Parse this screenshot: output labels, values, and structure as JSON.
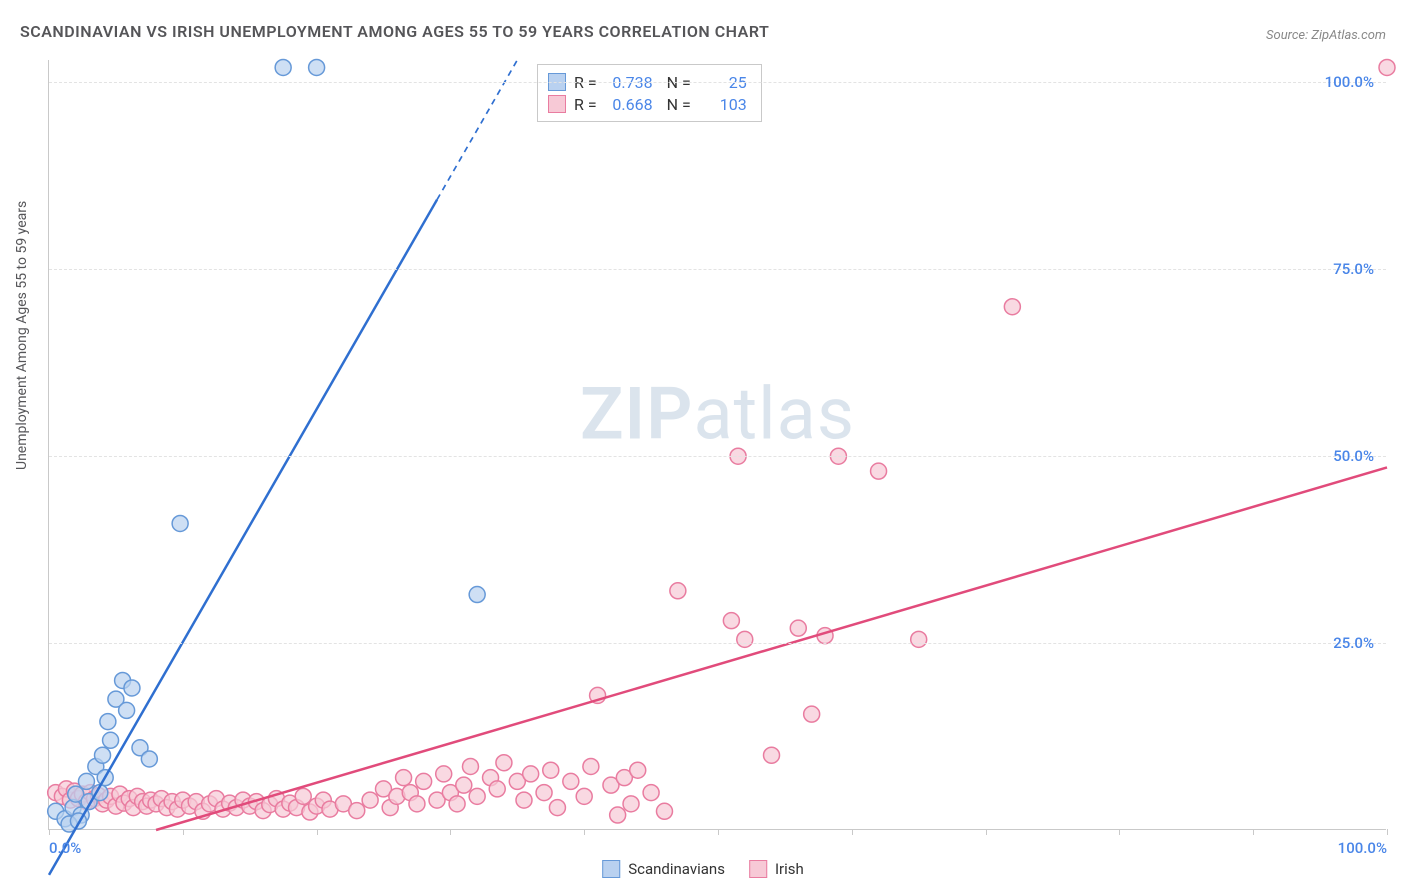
{
  "title": "SCANDINAVIAN VS IRISH UNEMPLOYMENT AMONG AGES 55 TO 59 YEARS CORRELATION CHART",
  "source": "Source: ZipAtlas.com",
  "ylabel": "Unemployment Among Ages 55 to 59 years",
  "watermark_zip": "ZIP",
  "watermark_atlas": "atlas",
  "chart": {
    "type": "scatter",
    "xlim": [
      0,
      100
    ],
    "ylim": [
      0,
      103
    ],
    "xtick_positions": [
      0,
      10,
      20,
      30,
      40,
      50,
      60,
      70,
      80,
      90,
      100
    ],
    "ytick_positions": [
      25,
      50,
      75,
      100
    ],
    "xtick_labels": {
      "0": "0.0%",
      "100": "100.0%"
    },
    "ytick_labels": {
      "25": "25.0%",
      "50": "50.0%",
      "75": "75.0%",
      "100": "100.0%"
    },
    "axis_label_color": "#4a86e8",
    "grid_color": "#e3e3e3",
    "background_color": "#ffffff",
    "marker_radius": 8,
    "marker_stroke_width": 1.5,
    "line_width": 2.5,
    "series": [
      {
        "name": "Scandinavians",
        "color_fill": "#b9d1f0",
        "color_stroke": "#6699d8",
        "line_color": "#2f6fd0",
        "R": "0.738",
        "N": "25",
        "regression": {
          "x1": 0,
          "y1": -6,
          "x2": 35,
          "y2": 103
        },
        "dash_from_x": 29,
        "points": [
          [
            0.5,
            2.5
          ],
          [
            1.2,
            1.5
          ],
          [
            1.8,
            3.0
          ],
          [
            2.0,
            4.8
          ],
          [
            2.4,
            2.0
          ],
          [
            2.8,
            6.5
          ],
          [
            3.0,
            3.8
          ],
          [
            3.5,
            8.5
          ],
          [
            3.8,
            5.0
          ],
          [
            4.0,
            10.0
          ],
          [
            4.4,
            14.5
          ],
          [
            4.6,
            12.0
          ],
          [
            5.0,
            17.5
          ],
          [
            5.5,
            20.0
          ],
          [
            5.8,
            16.0
          ],
          [
            6.2,
            19.0
          ],
          [
            6.8,
            11.0
          ],
          [
            7.5,
            9.5
          ],
          [
            9.8,
            41.0
          ],
          [
            17.5,
            102.0
          ],
          [
            20.0,
            102.0
          ],
          [
            32.0,
            31.5
          ],
          [
            1.5,
            0.8
          ],
          [
            2.2,
            1.2
          ],
          [
            4.2,
            7.0
          ]
        ]
      },
      {
        "name": "Irish",
        "color_fill": "#f7c9d6",
        "color_stroke": "#e97ca0",
        "line_color": "#e14b7b",
        "R": "0.668",
        "N": "103",
        "regression": {
          "x1": 8,
          "y1": 0,
          "x2": 100,
          "y2": 48.5
        },
        "points": [
          [
            0.5,
            5.0
          ],
          [
            1.0,
            4.5
          ],
          [
            1.3,
            5.5
          ],
          [
            1.6,
            4.0
          ],
          [
            1.9,
            5.2
          ],
          [
            2.2,
            4.2
          ],
          [
            2.5,
            4.8
          ],
          [
            2.8,
            3.8
          ],
          [
            3.1,
            5.0
          ],
          [
            3.4,
            4.2
          ],
          [
            3.7,
            4.6
          ],
          [
            4.0,
            3.5
          ],
          [
            4.3,
            4.0
          ],
          [
            4.6,
            4.5
          ],
          [
            5.0,
            3.2
          ],
          [
            5.3,
            4.8
          ],
          [
            5.6,
            3.6
          ],
          [
            6.0,
            4.2
          ],
          [
            6.3,
            3.0
          ],
          [
            6.6,
            4.5
          ],
          [
            7.0,
            3.8
          ],
          [
            7.3,
            3.2
          ],
          [
            7.6,
            4.0
          ],
          [
            8.0,
            3.5
          ],
          [
            8.4,
            4.2
          ],
          [
            8.8,
            3.0
          ],
          [
            9.2,
            3.8
          ],
          [
            9.6,
            2.8
          ],
          [
            10.0,
            4.0
          ],
          [
            10.5,
            3.2
          ],
          [
            11.0,
            3.8
          ],
          [
            11.5,
            2.5
          ],
          [
            12.0,
            3.5
          ],
          [
            12.5,
            4.2
          ],
          [
            13.0,
            2.8
          ],
          [
            13.5,
            3.6
          ],
          [
            14.0,
            3.0
          ],
          [
            14.5,
            4.0
          ],
          [
            15.0,
            3.2
          ],
          [
            15.5,
            3.8
          ],
          [
            16.0,
            2.6
          ],
          [
            16.5,
            3.4
          ],
          [
            17.0,
            4.2
          ],
          [
            17.5,
            2.8
          ],
          [
            18.0,
            3.6
          ],
          [
            18.5,
            3.0
          ],
          [
            19.0,
            4.5
          ],
          [
            19.5,
            2.4
          ],
          [
            20.0,
            3.2
          ],
          [
            20.5,
            4.0
          ],
          [
            21.0,
            2.8
          ],
          [
            22.0,
            3.5
          ],
          [
            23.0,
            2.6
          ],
          [
            24.0,
            4.0
          ],
          [
            25.0,
            5.5
          ],
          [
            25.5,
            3.0
          ],
          [
            26.0,
            4.5
          ],
          [
            26.5,
            7.0
          ],
          [
            27.0,
            5.0
          ],
          [
            27.5,
            3.5
          ],
          [
            28.0,
            6.5
          ],
          [
            29.0,
            4.0
          ],
          [
            29.5,
            7.5
          ],
          [
            30.0,
            5.0
          ],
          [
            30.5,
            3.5
          ],
          [
            31.0,
            6.0
          ],
          [
            31.5,
            8.5
          ],
          [
            32.0,
            4.5
          ],
          [
            33.0,
            7.0
          ],
          [
            33.5,
            5.5
          ],
          [
            34.0,
            9.0
          ],
          [
            35.0,
            6.5
          ],
          [
            35.5,
            4.0
          ],
          [
            36.0,
            7.5
          ],
          [
            37.0,
            5.0
          ],
          [
            37.5,
            8.0
          ],
          [
            38.0,
            3.0
          ],
          [
            39.0,
            6.5
          ],
          [
            40.0,
            4.5
          ],
          [
            40.5,
            8.5
          ],
          [
            41.0,
            18.0
          ],
          [
            42.0,
            6.0
          ],
          [
            42.5,
            2.0
          ],
          [
            43.0,
            7.0
          ],
          [
            43.5,
            3.5
          ],
          [
            44.0,
            8.0
          ],
          [
            45.0,
            5.0
          ],
          [
            46.0,
            2.5
          ],
          [
            47.0,
            32.0
          ],
          [
            51.0,
            28.0
          ],
          [
            51.5,
            50.0
          ],
          [
            52.0,
            25.5
          ],
          [
            54.0,
            10.0
          ],
          [
            56.0,
            27.0
          ],
          [
            57.0,
            15.5
          ],
          [
            58.0,
            26.0
          ],
          [
            59.0,
            50.0
          ],
          [
            62.0,
            48.0
          ],
          [
            65.0,
            25.5
          ],
          [
            72.0,
            70.0
          ],
          [
            100.0,
            102.0
          ]
        ]
      }
    ]
  },
  "legend_bottom": [
    {
      "label": "Scandinavians",
      "fill": "#b9d1f0",
      "stroke": "#6699d8"
    },
    {
      "label": "Irish",
      "fill": "#f7c9d6",
      "stroke": "#e97ca0"
    }
  ]
}
